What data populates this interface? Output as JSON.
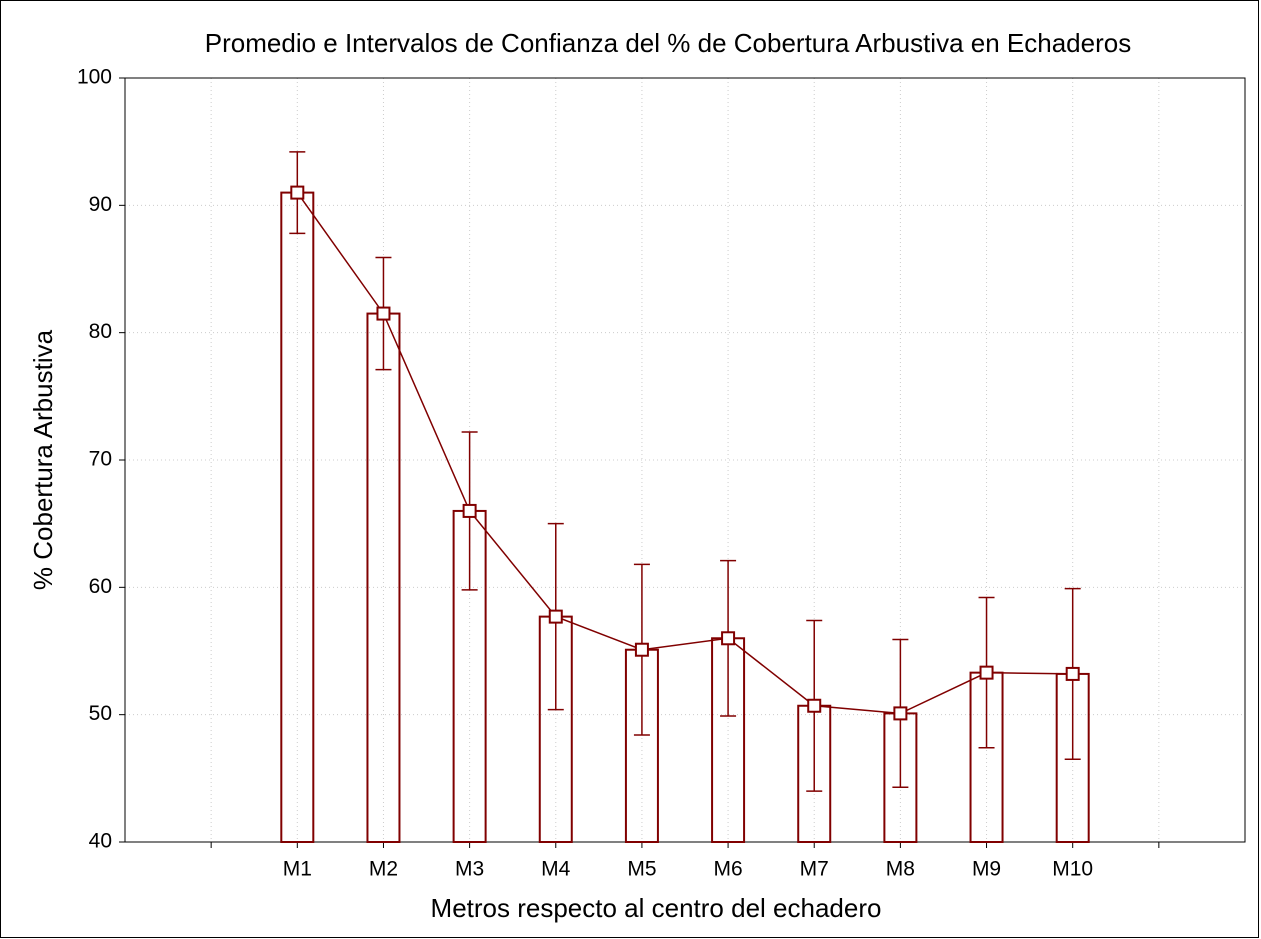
{
  "chart_data": {
    "type": "bar",
    "title": "Promedio e Intervalos de Confianza del % de Cobertura Arbustiva en Echaderos",
    "x_label": "Metros respecto al centro del echadero",
    "y_label": "% Cobertura Arbustiva",
    "categories": [
      null,
      "M1",
      "M2",
      "M3",
      "M4",
      "M5",
      "M6",
      "M7",
      "M8",
      "M9",
      "M10",
      null
    ],
    "values": [
      null,
      91.0,
      81.5,
      66.0,
      57.7,
      55.1,
      56.0,
      50.7,
      50.1,
      53.3,
      53.2,
      null
    ],
    "errors": [
      null,
      3.2,
      4.4,
      6.2,
      7.3,
      6.7,
      6.1,
      6.7,
      5.8,
      5.9,
      6.7,
      null
    ],
    "color": "#800000",
    "ylim": [
      40,
      100
    ],
    "yticks": [
      40,
      50,
      60,
      70,
      80,
      90,
      100
    ],
    "grid": true
  }
}
